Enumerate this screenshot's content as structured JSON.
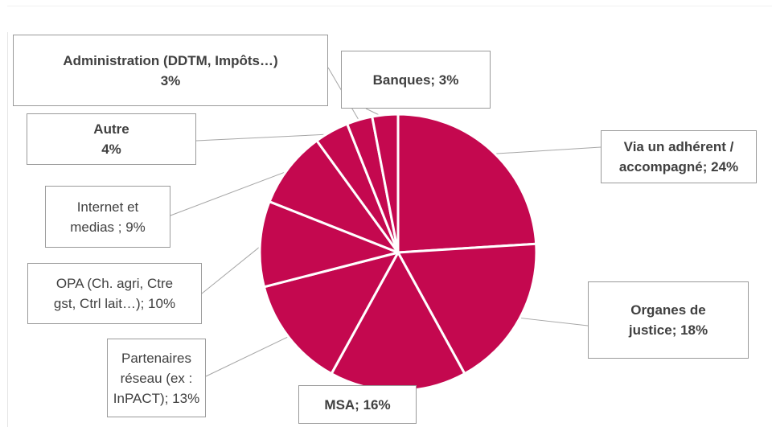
{
  "chart_data": {
    "type": "pie",
    "slices": [
      {
        "label": "Via un adhérent / accompagné; 24%",
        "value": 24
      },
      {
        "label": "Organes de justice; 18%",
        "value": 18
      },
      {
        "label": "MSA; 16%",
        "value": 16
      },
      {
        "label": "Partenaires réseau (ex : InPACT); 13%",
        "value": 13
      },
      {
        "label": "OPA (Ch. agri, Ctre gst, Ctrl lait…); 10%",
        "value": 10
      },
      {
        "label": "Internet et medias ; 9%",
        "value": 9
      },
      {
        "label": "Autre 4%",
        "value": 4
      },
      {
        "label": "Administration (DDTM, Impôts…) 3%",
        "value": 3
      },
      {
        "label": "Banques; 3%",
        "value": 3
      }
    ],
    "slice_color": "#c4084f",
    "separator_color": "#ffffff",
    "labels": {
      "via": "Via un adhérent /\naccompagné; 24%",
      "justice": "Organes de\njustice; 18%",
      "msa": "MSA; 16%",
      "partenaires": "Partenaires\nréseau (ex :\nInPACT); 13%",
      "opa": "OPA (Ch. agri, Ctre\ngst, Ctrl lait…); 10%",
      "internet": "Internet et\nmedias ; 9%",
      "autre": "Autre\n4%",
      "administration": "Administration (DDTM, Impôts…)\n3%",
      "banques": "Banques; 3%"
    }
  }
}
